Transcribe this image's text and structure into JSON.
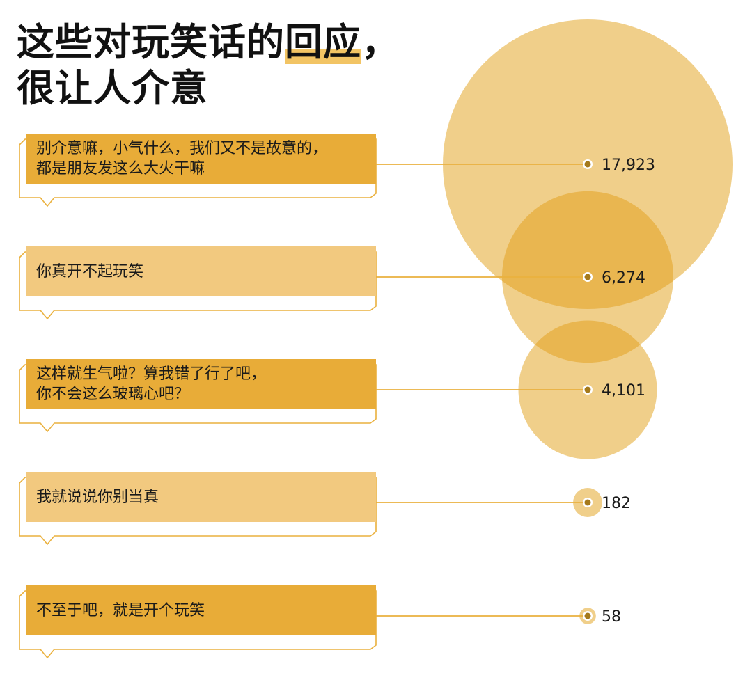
{
  "title": {
    "line1_before": "这些对玩笑话的",
    "line1_highlight": "回应",
    "line1_after": "，",
    "line2": "很让人介意"
  },
  "colors": {
    "bubble": "#f0cf8a",
    "overlap": "#e9b650",
    "box_dark": "#e8ac38",
    "box_light": "#f2c97f",
    "outline": "#eab13e",
    "dot": "#a57a1c",
    "text": "#1a1a1a"
  },
  "chart_data": {
    "type": "bubble",
    "items": [
      {
        "label_lines": [
          "别介意嘛，小气什么，我们又不是故意的，",
          "都是朋友发这么大火干嘛"
        ],
        "value": 17923,
        "value_label": "17,923",
        "box": "dark"
      },
      {
        "label_lines": [
          "你真开不起玩笑"
        ],
        "value": 6274,
        "value_label": "6,274",
        "box": "light"
      },
      {
        "label_lines": [
          "这样就生气啦？算我错了行了吧，",
          "你不会这么玻璃心吧？"
        ],
        "value": 4101,
        "value_label": "4,101",
        "box": "dark"
      },
      {
        "label_lines": [
          "我就说说你别当真"
        ],
        "value": 182,
        "value_label": "182",
        "box": "light"
      },
      {
        "label_lines": [
          "不至于吧，就是开个玩笑"
        ],
        "value": 58,
        "value_label": "58",
        "box": "dark"
      }
    ]
  }
}
